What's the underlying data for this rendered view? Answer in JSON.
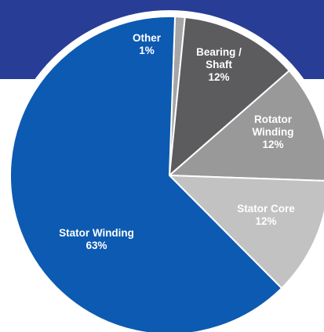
{
  "theme": {
    "banner_color": "#283d96",
    "ring_color": "#ffffff"
  },
  "chart_data": {
    "type": "pie",
    "start_angle_deg": 2,
    "slices": [
      {
        "label": "Other",
        "label_lines": [
          "Other"
        ],
        "value": 1,
        "value_label": "1%",
        "color": "#a5a5a5",
        "text_color": "#ffffff"
      },
      {
        "label": "Bearing / Shaft",
        "label_lines": [
          "Bearing /",
          "Shaft"
        ],
        "value": 12,
        "value_label": "12%",
        "color": "#5c5c5e",
        "text_color": "#ffffff"
      },
      {
        "label": "Rotator Winding",
        "label_lines": [
          "Rotator",
          "Winding"
        ],
        "value": 12,
        "value_label": "12%",
        "color": "#999999",
        "text_color": "#ffffff"
      },
      {
        "label": "Stator Core",
        "label_lines": [
          "Stator Core"
        ],
        "value": 12,
        "value_label": "12%",
        "color": "#c2c2c2",
        "text_color": "#ffffff"
      },
      {
        "label": "Stator Winding",
        "label_lines": [
          "Stator Winding"
        ],
        "value": 63,
        "value_label": "63%",
        "color": "#0c5ab1",
        "text_color": "#ffffff"
      }
    ]
  }
}
